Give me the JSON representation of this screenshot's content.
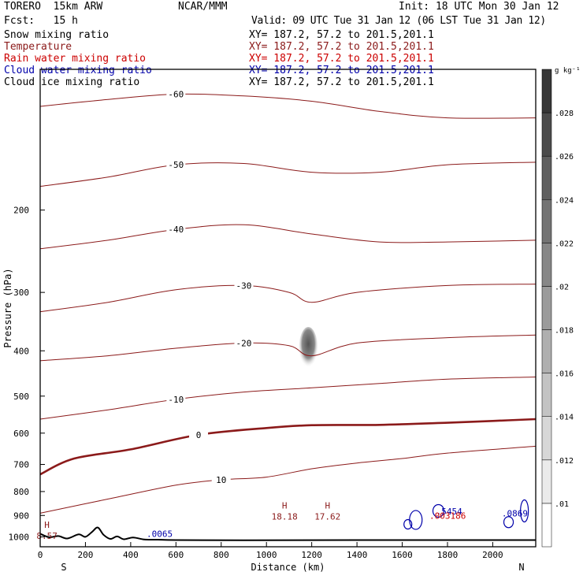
{
  "header": {
    "model": "TORERO  15km ARW",
    "org": "NCAR/MMM",
    "init": "Init: 18 UTC Mon 30 Jan 12",
    "fcst": "Fcst:   15 h",
    "valid": "Valid: 09 UTC Tue 31 Jan 12 (06 LST Tue 31 Jan 12)"
  },
  "fields": [
    {
      "name": "Snow mixing ratio",
      "xy": "XY= 187.2, 57.2 to 201.5,201.1",
      "color": "#000000"
    },
    {
      "name": "Temperature",
      "xy": "XY= 187.2, 57.2 to 201.5,201.1",
      "color": "#8b1a1a"
    },
    {
      "name": "Rain water mixing ratio",
      "xy": "XY= 187.2, 57.2 to 201.5,201.1",
      "color": "#cc0000"
    },
    {
      "name": "Cloud water mixing ratio",
      "xy": "XY= 187.2, 57.2 to 201.5,201.1",
      "color": "#0000aa"
    },
    {
      "name": "Cloud ice mixing ratio",
      "xy": "XY= 187.2, 57.2 to 201.5,201.1",
      "color": "#000000"
    }
  ],
  "chart_data": {
    "type": "contour",
    "xlabel": "Distance (km)",
    "ylabel": "Pressure (hPa)",
    "xlim": [
      0,
      2190
    ],
    "ylim": [
      1050,
      100
    ],
    "y_scale": "log",
    "x_ticks": [
      0,
      200,
      400,
      600,
      800,
      1000,
      1200,
      1400,
      1600,
      1800,
      2000
    ],
    "y_ticks": [
      200,
      300,
      400,
      500,
      600,
      700,
      800,
      900,
      1000
    ],
    "left_end_label": "S",
    "right_end_label": "N",
    "colorbar": {
      "unit": "g kg⁻¹",
      "ticks": [
        ".01",
        ".012",
        ".014",
        ".016",
        ".018",
        ".02",
        ".022",
        ".024",
        ".026",
        ".028"
      ]
    },
    "temperature_contours": [
      {
        "label": "-60",
        "points": [
          [
            0,
            120
          ],
          [
            300,
            116
          ],
          [
            600,
            113
          ],
          [
            900,
            114
          ],
          [
            1200,
            117
          ],
          [
            1500,
            123
          ],
          [
            1800,
            127
          ],
          [
            2190,
            127
          ]
        ]
      },
      {
        "label": "-50",
        "points": [
          [
            0,
            178
          ],
          [
            300,
            170
          ],
          [
            600,
            160
          ],
          [
            900,
            159
          ],
          [
            1200,
            166
          ],
          [
            1500,
            166
          ],
          [
            1800,
            160
          ],
          [
            2190,
            158
          ]
        ]
      },
      {
        "label": "-40",
        "points": [
          [
            0,
            242
          ],
          [
            300,
            232
          ],
          [
            600,
            220
          ],
          [
            900,
            215
          ],
          [
            1200,
            225
          ],
          [
            1500,
            234
          ],
          [
            1800,
            234
          ],
          [
            2190,
            232
          ]
        ]
      },
      {
        "label": "-30",
        "points": [
          [
            0,
            330
          ],
          [
            300,
            315
          ],
          [
            600,
            296
          ],
          [
            900,
            290
          ],
          [
            1100,
            300
          ],
          [
            1200,
            315
          ],
          [
            1400,
            300
          ],
          [
            1800,
            290
          ],
          [
            2190,
            288
          ]
        ]
      },
      {
        "label": "-20",
        "points": [
          [
            0,
            420
          ],
          [
            300,
            410
          ],
          [
            600,
            395
          ],
          [
            900,
            385
          ],
          [
            1100,
            390
          ],
          [
            1200,
            410
          ],
          [
            1400,
            385
          ],
          [
            1800,
            375
          ],
          [
            2190,
            370
          ]
        ]
      },
      {
        "label": "-10",
        "points": [
          [
            0,
            560
          ],
          [
            300,
            535
          ],
          [
            600,
            508
          ],
          [
            900,
            490
          ],
          [
            1200,
            480
          ],
          [
            1500,
            470
          ],
          [
            1800,
            460
          ],
          [
            2190,
            455
          ]
        ]
      },
      {
        "label": "0",
        "points": [
          [
            0,
            735
          ],
          [
            150,
            680
          ],
          [
            400,
            650
          ],
          [
            700,
            605
          ],
          [
            1000,
            585
          ],
          [
            1200,
            577
          ],
          [
            1500,
            576
          ],
          [
            1800,
            570
          ],
          [
            2000,
            565
          ],
          [
            2190,
            560
          ]
        ]
      },
      {
        "label": "10",
        "points": [
          [
            0,
            890
          ],
          [
            300,
            830
          ],
          [
            600,
            775
          ],
          [
            800,
            755
          ],
          [
            1000,
            745
          ],
          [
            1200,
            715
          ],
          [
            1400,
            695
          ],
          [
            1600,
            680
          ],
          [
            1800,
            662
          ],
          [
            2190,
            640
          ]
        ]
      }
    ],
    "highs": [
      {
        "x": 1080,
        "p": 905,
        "value": "18.18"
      },
      {
        "x": 1270,
        "p": 905,
        "value": "17.62"
      },
      {
        "x": 30,
        "p": 995,
        "value": "8.57"
      }
    ],
    "cloud_water_labels": [
      ".0065",
      ".5454",
      ".0869"
    ],
    "rain_water_labels": [
      ".003186"
    ],
    "ice_max": {
      "x": 1185,
      "p": 395
    }
  }
}
